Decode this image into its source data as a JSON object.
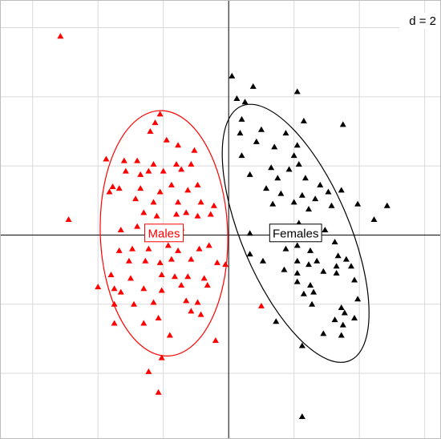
{
  "chart_data": {
    "type": "scatter",
    "grid_label": "d = 2",
    "xlim": [
      -7,
      6.5
    ],
    "ylim": [
      -5.9,
      6.8
    ],
    "grid_step": 2,
    "series": [
      {
        "name": "Males",
        "color": "#ff0000",
        "marker": "triangle",
        "ellipse": {
          "center": [
            -1.98,
            0.05
          ],
          "axes": [
            3.9,
            7.1
          ],
          "angle": -2
        },
        "points": [
          [
            -5.15,
            5.75
          ],
          [
            -4.9,
            0.45
          ],
          [
            -2.1,
            3.5
          ],
          [
            -2.25,
            3.25
          ],
          [
            -2.4,
            3.0
          ],
          [
            -1.9,
            2.75
          ],
          [
            -1.55,
            2.6
          ],
          [
            -1.05,
            2.45
          ],
          [
            -3.75,
            2.2
          ],
          [
            -3.2,
            2.15
          ],
          [
            -2.8,
            2.15
          ],
          [
            -2.3,
            2.05
          ],
          [
            -1.6,
            2.05
          ],
          [
            -1.15,
            2.05
          ],
          [
            -3.15,
            1.85
          ],
          [
            -2.45,
            1.85
          ],
          [
            -2.0,
            1.85
          ],
          [
            -1.45,
            1.9
          ],
          [
            -2.7,
            1.75
          ],
          [
            -3.55,
            1.4
          ],
          [
            -3.35,
            1.35
          ],
          [
            -2.7,
            1.35
          ],
          [
            -1.75,
            1.45
          ],
          [
            -2.1,
            1.25
          ],
          [
            -1.25,
            1.3
          ],
          [
            -0.95,
            1.45
          ],
          [
            -3.65,
            1.25
          ],
          [
            -2.85,
            1.05
          ],
          [
            -2.3,
            0.95
          ],
          [
            -1.55,
            0.95
          ],
          [
            -0.85,
            0.95
          ],
          [
            -0.45,
            0.85
          ],
          [
            -2.6,
            0.65
          ],
          [
            -2.2,
            0.55
          ],
          [
            -1.6,
            0.6
          ],
          [
            -1.3,
            0.65
          ],
          [
            -0.95,
            0.55
          ],
          [
            -0.55,
            0.6
          ],
          [
            -2.8,
            0.25
          ],
          [
            -3.3,
            0.15
          ],
          [
            -1.85,
            0.15
          ],
          [
            -1.45,
            0.2
          ],
          [
            -3.35,
            -0.45
          ],
          [
            -2.95,
            -0.4
          ],
          [
            -2.45,
            -0.4
          ],
          [
            -1.85,
            -0.3
          ],
          [
            -1.55,
            -0.45
          ],
          [
            -0.9,
            -0.4
          ],
          [
            -0.6,
            -0.3
          ],
          [
            -3.05,
            -0.75
          ],
          [
            -2.55,
            -0.75
          ],
          [
            -2.1,
            -0.8
          ],
          [
            -1.75,
            -0.7
          ],
          [
            -1.15,
            -0.7
          ],
          [
            -0.35,
            -0.8
          ],
          [
            -3.6,
            -1.15
          ],
          [
            -3.0,
            -1.25
          ],
          [
            -2.05,
            -1.15
          ],
          [
            -1.65,
            -1.2
          ],
          [
            -1.25,
            -1.2
          ],
          [
            -0.75,
            -1.25
          ],
          [
            -0.1,
            -0.85
          ],
          [
            -4.0,
            -1.5
          ],
          [
            -3.5,
            -1.55
          ],
          [
            -3.3,
            -1.65
          ],
          [
            -2.6,
            -1.55
          ],
          [
            -2.05,
            -1.6
          ],
          [
            -1.45,
            -1.45
          ],
          [
            -0.65,
            -1.45
          ],
          [
            -3.5,
            -2.0
          ],
          [
            -2.9,
            -2.0
          ],
          [
            -2.3,
            -1.95
          ],
          [
            -1.3,
            -1.9
          ],
          [
            -0.95,
            -1.95
          ],
          [
            -2.15,
            -2.4
          ],
          [
            -1.15,
            -2.2
          ],
          [
            -0.85,
            -2.3
          ],
          [
            -3.5,
            -2.55
          ],
          [
            -2.6,
            -2.55
          ],
          [
            -1.8,
            -2.9
          ],
          [
            -0.4,
            -3.05
          ],
          [
            -2.05,
            -3.55
          ],
          [
            -2.45,
            -3.95
          ],
          [
            -2.15,
            -4.55
          ],
          [
            1.0,
            -2.05
          ]
        ]
      },
      {
        "name": "Females",
        "color": "#000000",
        "marker": "triangle",
        "ellipse": {
          "center": [
            2.05,
            0.05
          ],
          "axes": [
            3.3,
            8.0
          ],
          "angle": -23
        },
        "points": [
          [
            0.1,
            4.6
          ],
          [
            0.25,
            3.95
          ],
          [
            0.5,
            3.85
          ],
          [
            0.75,
            4.3
          ],
          [
            2.1,
            4.15
          ],
          [
            0.4,
            3.35
          ],
          [
            2.3,
            3.3
          ],
          [
            1.0,
            3.05
          ],
          [
            0.35,
            2.95
          ],
          [
            3.5,
            3.2
          ],
          [
            1.75,
            2.95
          ],
          [
            0.85,
            2.7
          ],
          [
            1.4,
            2.55
          ],
          [
            2.1,
            2.6
          ],
          [
            2.0,
            2.3
          ],
          [
            2.15,
            2.05
          ],
          [
            0.4,
            2.3
          ],
          [
            0.65,
            1.75
          ],
          [
            1.3,
            1.95
          ],
          [
            1.85,
            1.9
          ],
          [
            1.5,
            1.65
          ],
          [
            2.35,
            1.65
          ],
          [
            2.8,
            1.45
          ],
          [
            1.15,
            1.35
          ],
          [
            1.6,
            1.2
          ],
          [
            2.25,
            1.15
          ],
          [
            2.65,
            1.05
          ],
          [
            3.05,
            1.25
          ],
          [
            3.45,
            1.3
          ],
          [
            3.95,
            0.9
          ],
          [
            1.35,
            0.9
          ],
          [
            2.0,
            0.95
          ],
          [
            2.45,
            0.75
          ],
          [
            3.15,
            0.85
          ],
          [
            4.85,
            0.85
          ],
          [
            4.45,
            0.45
          ],
          [
            2.15,
            0.35
          ],
          [
            2.95,
            0.15
          ],
          [
            2.05,
            -0.05
          ],
          [
            0.65,
            0.05
          ],
          [
            3.25,
            -0.2
          ],
          [
            2.1,
            -0.3
          ],
          [
            2.5,
            -0.45
          ],
          [
            1.75,
            -0.4
          ],
          [
            3.35,
            -0.6
          ],
          [
            2.7,
            -0.75
          ],
          [
            0.65,
            -0.55
          ],
          [
            1.05,
            -0.75
          ],
          [
            2.1,
            -0.75
          ],
          [
            2.45,
            -0.85
          ],
          [
            3.3,
            -0.9
          ],
          [
            3.75,
            -0.9
          ],
          [
            3.6,
            -0.7
          ],
          [
            1.7,
            -1.0
          ],
          [
            2.1,
            -1.1
          ],
          [
            2.9,
            -1.05
          ],
          [
            3.3,
            -1.1
          ],
          [
            2.1,
            -1.35
          ],
          [
            2.5,
            -1.45
          ],
          [
            3.85,
            -1.3
          ],
          [
            2.3,
            -1.7
          ],
          [
            2.6,
            -1.65
          ],
          [
            3.95,
            -1.85
          ],
          [
            2.55,
            -2.0
          ],
          [
            3.45,
            -2.1
          ],
          [
            3.55,
            -2.25
          ],
          [
            3.25,
            -2.45
          ],
          [
            1.45,
            -2.5
          ],
          [
            3.85,
            -2.4
          ],
          [
            3.5,
            -2.6
          ],
          [
            2.9,
            -2.85
          ],
          [
            3.45,
            -2.9
          ],
          [
            2.25,
            -3.2
          ],
          [
            2.25,
            -5.25
          ]
        ]
      }
    ]
  }
}
